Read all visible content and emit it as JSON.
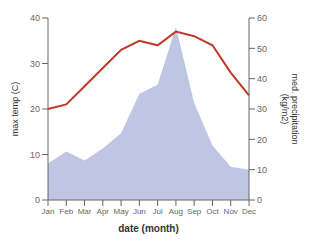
{
  "chart_data": {
    "type": "line",
    "xlabel": "date (month)",
    "ylabel": "max temp (C)",
    "y2label": "med. precipitation\n(kg/m2)",
    "categories": [
      "Jan",
      "Feb",
      "Mar",
      "Apr",
      "May",
      "Jun",
      "Jul",
      "Aug",
      "Sep",
      "Oct",
      "Nov",
      "Dec"
    ],
    "series": [
      {
        "type": "area",
        "axis": "y2",
        "color": "#b8c0e0",
        "values": [
          12,
          16,
          13,
          17,
          22,
          35,
          38,
          57,
          32,
          18,
          11,
          10
        ]
      },
      {
        "type": "line",
        "color": "#c0392b",
        "values": [
          20,
          21,
          25,
          29,
          33,
          35,
          34,
          37,
          36,
          34,
          28,
          23
        ]
      }
    ],
    "ylim": [
      0,
      40
    ],
    "yticks": [
      0,
      10,
      20,
      30,
      40
    ],
    "y2lim": [
      0,
      60
    ],
    "y2ticks": [
      0,
      10,
      20,
      30,
      40,
      50,
      60
    ],
    "grid": false
  }
}
